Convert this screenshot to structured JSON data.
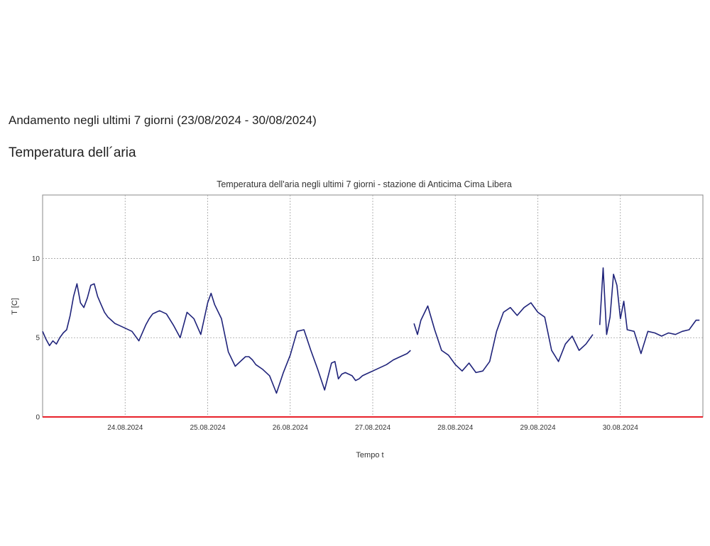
{
  "page": {
    "period_heading": "Andamento negli ultimi 7 giorni (23/08/2024 - 30/08/2024)",
    "section_heading": "Temperatura dell´aria"
  },
  "chart_data": {
    "type": "line",
    "title": "Temperatura dell'aria negli ultimi 7 giorni - stazione di Anticima Cima Libera",
    "xlabel": "Tempo t",
    "ylabel": "T [C]",
    "xlim": [
      "2024-08-23 00:00",
      "2024-08-31 00:00"
    ],
    "ylim": [
      0,
      14
    ],
    "x_ticks": [
      "24.08.2024",
      "25.08.2024",
      "26.08.2024",
      "27.08.2024",
      "28.08.2024",
      "29.08.2024",
      "30.08.2024"
    ],
    "y_ticks": [
      0,
      5,
      10
    ],
    "grid": true,
    "colors": {
      "series": "#1f237a",
      "zero_line": "#e8212a",
      "grid": "#a0a0a0"
    },
    "series": [
      {
        "x": [
          "2024-08-23 00:00",
          "2024-08-23 01:00",
          "2024-08-23 02:00",
          "2024-08-23 03:00",
          "2024-08-23 04:00",
          "2024-08-23 05:00",
          "2024-08-23 06:00",
          "2024-08-23 07:00",
          "2024-08-23 08:00",
          "2024-08-23 09:00",
          "2024-08-23 10:00",
          "2024-08-23 11:00",
          "2024-08-23 12:00",
          "2024-08-23 13:00",
          "2024-08-23 14:00",
          "2024-08-23 15:00",
          "2024-08-23 16:00",
          "2024-08-23 17:00",
          "2024-08-23 18:00",
          "2024-08-23 19:00",
          "2024-08-23 20:00",
          "2024-08-23 21:00",
          "2024-08-23 22:00",
          "2024-08-24 00:00",
          "2024-08-24 02:00",
          "2024-08-24 04:00",
          "2024-08-24 06:00",
          "2024-08-24 07:00",
          "2024-08-24 08:00",
          "2024-08-24 09:00",
          "2024-08-24 10:00",
          "2024-08-24 12:00",
          "2024-08-24 14:00",
          "2024-08-24 16:00",
          "2024-08-24 18:00",
          "2024-08-24 20:00",
          "2024-08-24 22:00",
          "2024-08-25 00:00",
          "2024-08-25 01:00",
          "2024-08-25 02:00",
          "2024-08-25 04:00",
          "2024-08-25 06:00",
          "2024-08-25 08:00",
          "2024-08-25 10:00",
          "2024-08-25 11:00",
          "2024-08-25 12:00",
          "2024-08-25 13:00",
          "2024-08-25 14:00",
          "2024-08-25 16:00",
          "2024-08-25 18:00",
          "2024-08-25 20:00",
          "2024-08-25 22:00",
          "2024-08-26 00:00",
          "2024-08-26 02:00",
          "2024-08-26 04:00",
          "2024-08-26 06:00",
          "2024-08-26 08:00",
          "2024-08-26 10:00",
          "2024-08-26 12:00",
          "2024-08-26 13:00",
          "2024-08-26 14:00",
          "2024-08-26 15:00",
          "2024-08-26 16:00",
          "2024-08-26 18:00",
          "2024-08-26 19:00",
          "2024-08-26 20:00",
          "2024-08-26 21:00",
          "2024-08-26 22:00",
          "2024-08-26 23:00",
          "2024-08-27 00:00",
          "2024-08-27 02:00",
          "2024-08-27 04:00",
          "2024-08-27 06:00",
          "2024-08-27 08:00",
          "2024-08-27 10:00",
          "2024-08-27 11:00"
        ],
        "values": [
          5.4,
          4.9,
          4.5,
          4.8,
          4.6,
          5.0,
          5.3,
          5.5,
          6.4,
          7.6,
          8.4,
          7.2,
          6.9,
          7.5,
          8.3,
          8.4,
          7.6,
          7.1,
          6.6,
          6.3,
          6.1,
          5.9,
          5.8,
          5.6,
          5.4,
          4.8,
          5.8,
          6.2,
          6.5,
          6.6,
          6.7,
          6.5,
          5.8,
          5.0,
          6.6,
          6.2,
          5.2,
          7.2,
          7.8,
          7.1,
          6.2,
          4.1,
          3.2,
          3.6,
          3.8,
          3.8,
          3.6,
          3.3,
          3.0,
          2.6,
          1.5,
          2.8,
          3.9,
          5.4,
          5.5,
          4.2,
          3.0,
          1.7,
          3.4,
          3.5,
          2.4,
          2.7,
          2.8,
          2.6,
          2.3,
          2.4,
          2.6,
          2.7,
          2.8,
          2.9,
          3.1,
          3.3,
          3.6,
          3.8,
          4.0,
          4.2
        ]
      },
      {
        "x": [
          "2024-08-27 12:00",
          "2024-08-27 13:00",
          "2024-08-27 14:00",
          "2024-08-27 16:00",
          "2024-08-27 18:00",
          "2024-08-27 20:00",
          "2024-08-27 22:00",
          "2024-08-28 00:00",
          "2024-08-28 02:00",
          "2024-08-28 04:00",
          "2024-08-28 06:00",
          "2024-08-28 08:00",
          "2024-08-28 10:00",
          "2024-08-28 12:00",
          "2024-08-28 14:00",
          "2024-08-28 16:00",
          "2024-08-28 18:00",
          "2024-08-28 20:00",
          "2024-08-28 22:00",
          "2024-08-29 00:00",
          "2024-08-29 02:00",
          "2024-08-29 04:00",
          "2024-08-29 06:00",
          "2024-08-29 08:00",
          "2024-08-29 10:00",
          "2024-08-29 12:00",
          "2024-08-29 14:00",
          "2024-08-29 16:00"
        ],
        "values": [
          5.9,
          5.2,
          6.1,
          7.0,
          5.5,
          4.2,
          3.9,
          3.3,
          2.9,
          3.4,
          2.8,
          2.9,
          3.5,
          5.4,
          6.6,
          6.9,
          6.4,
          6.9,
          7.2,
          6.6,
          6.3,
          4.2,
          3.5,
          4.6,
          5.1,
          4.2,
          4.6,
          5.2
        ]
      },
      {
        "x": [
          "2024-08-29 18:00",
          "2024-08-29 19:00",
          "2024-08-29 20:00",
          "2024-08-29 21:00",
          "2024-08-29 22:00",
          "2024-08-29 23:00",
          "2024-08-30 00:00",
          "2024-08-30 01:00",
          "2024-08-30 02:00",
          "2024-08-30 04:00",
          "2024-08-30 06:00",
          "2024-08-30 08:00",
          "2024-08-30 10:00",
          "2024-08-30 12:00",
          "2024-08-30 13:00",
          "2024-08-30 14:00",
          "2024-08-30 16:00",
          "2024-08-30 18:00",
          "2024-08-30 20:00",
          "2024-08-30 22:00",
          "2024-08-30 23:00"
        ],
        "values": [
          5.8,
          9.4,
          5.2,
          6.3,
          9.0,
          8.3,
          6.2,
          7.3,
          5.5,
          5.4,
          4.0,
          5.4,
          5.3,
          5.1,
          5.2,
          5.3,
          5.2,
          5.4,
          5.5,
          6.1,
          6.1
        ]
      }
    ]
  }
}
